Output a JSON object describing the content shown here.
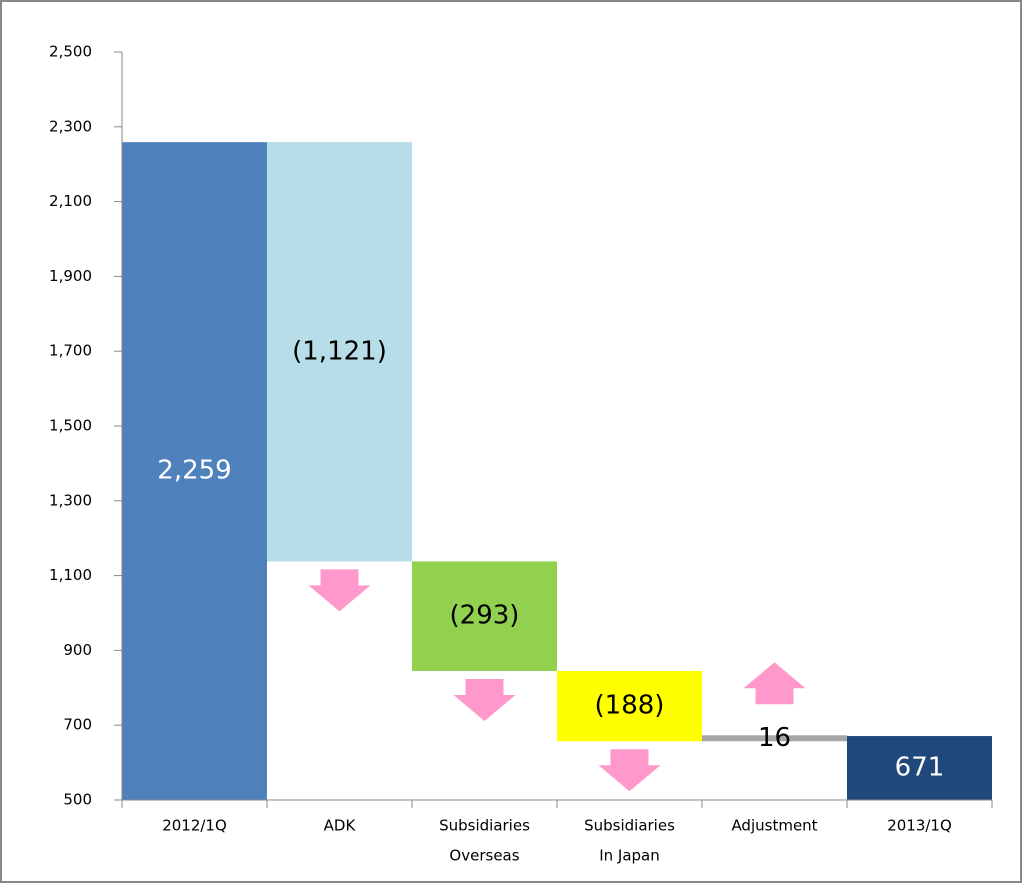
{
  "chart_data": {
    "type": "waterfall",
    "categories": [
      [
        "2012/1Q"
      ],
      [
        "ADK"
      ],
      [
        "Subsidiaries",
        "Overseas"
      ],
      [
        "Subsidiaries",
        "In Japan"
      ],
      [
        "Adjustment"
      ],
      [
        "2013/1Q"
      ]
    ],
    "values": [
      2259,
      -1121,
      -293,
      -188,
      16,
      671
    ],
    "value_labels": [
      "2,259",
      "(1,121)",
      "(293)",
      "(188)",
      "16",
      "671"
    ],
    "colors": [
      "#4f81bd",
      "#b7dde8",
      "#92d050",
      "#ffff00",
      "#a6a6a6",
      "#1f497d"
    ],
    "ylim": [
      500,
      2500
    ],
    "yticks": [
      500,
      700,
      900,
      {
        "value": 1100,
        "label": "1,100"
      },
      {
        "value": 1300,
        "label": "1,300"
      },
      {
        "value": 1500,
        "label": "1,500"
      },
      {
        "value": 1700,
        "label": "1,700"
      },
      {
        "value": 1900,
        "label": "1,900"
      },
      {
        "value": 2100,
        "label": "2,100"
      },
      {
        "value": 2300,
        "label": "2,300"
      },
      {
        "value": 2500,
        "label": "2,500"
      }
    ]
  }
}
